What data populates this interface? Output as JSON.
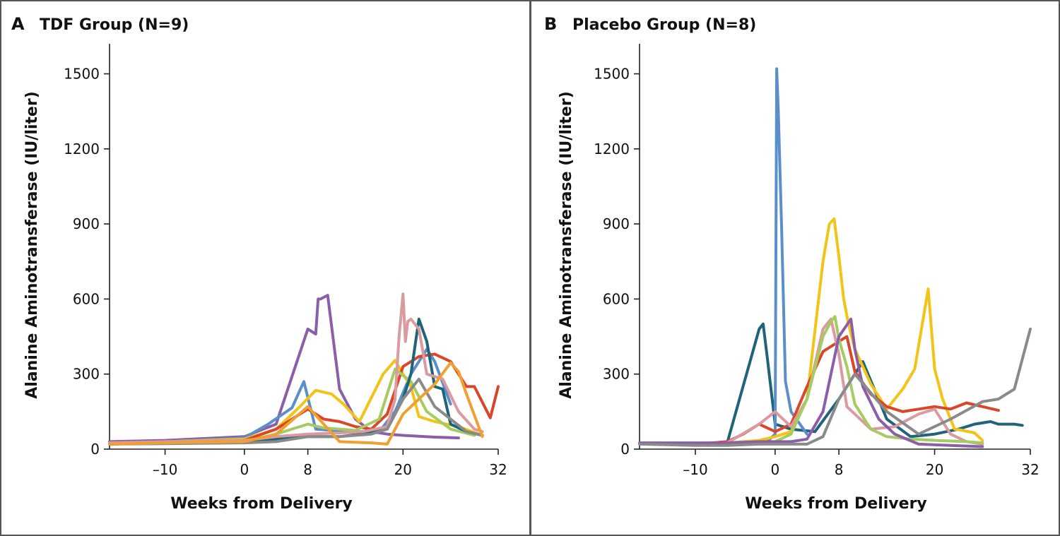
{
  "chart_data": [
    {
      "type": "line",
      "panel_letter": "A",
      "title": "TDF Group (N=9)",
      "xlabel": "Weeks from Delivery",
      "ylabel": "Alanine Aminotransferase (IU/liter)",
      "xlim": [
        -17,
        32
      ],
      "ylim": [
        0,
        1620
      ],
      "xticks": [
        -10,
        0,
        8,
        20,
        32
      ],
      "xtick_labels": [
        "–10",
        "0",
        "8",
        "20",
        "32"
      ],
      "yticks": [
        0,
        300,
        600,
        900,
        1200,
        1500
      ],
      "ytick_labels": [
        "0",
        "300",
        "600",
        "900",
        "1200",
        "1500"
      ],
      "series": [
        {
          "color": "#8b5ea8",
          "x": [
            -17,
            -10,
            0,
            4,
            8,
            9,
            9.3,
            9.6,
            10.5,
            12,
            14,
            16,
            18,
            20,
            24,
            27
          ],
          "y": [
            30,
            35,
            50,
            100,
            480,
            460,
            600,
            600,
            615,
            240,
            120,
            70,
            60,
            55,
            48,
            45
          ]
        },
        {
          "color": "#5b8fc9",
          "x": [
            -17,
            -10,
            0,
            3,
            6,
            7.5,
            9,
            11,
            14,
            17,
            19,
            21,
            23,
            24,
            26
          ],
          "y": [
            25,
            30,
            45,
            100,
            165,
            270,
            80,
            75,
            70,
            70,
            150,
            300,
            400,
            350,
            180
          ]
        },
        {
          "color": "#f2c418",
          "x": [
            -17,
            -10,
            0,
            4,
            7,
            9,
            11,
            12.5,
            14.5,
            17.5,
            19,
            20,
            21,
            22,
            24,
            27,
            30
          ],
          "y": [
            20,
            30,
            40,
            80,
            170,
            235,
            220,
            180,
            110,
            300,
            355,
            300,
            250,
            130,
            110,
            90,
            55
          ]
        },
        {
          "color": "#d9462a",
          "x": [
            -17,
            -10,
            0,
            4,
            8,
            10,
            12,
            14,
            16,
            18,
            20,
            22,
            24,
            26,
            28,
            29,
            31,
            32
          ],
          "y": [
            25,
            30,
            35,
            80,
            160,
            120,
            110,
            90,
            80,
            140,
            330,
            370,
            380,
            350,
            250,
            250,
            125,
            250
          ]
        },
        {
          "color": "#a6cb60",
          "x": [
            -17,
            -10,
            0,
            4,
            8,
            10,
            14,
            17,
            19,
            21,
            23,
            26,
            29
          ],
          "y": [
            20,
            25,
            30,
            60,
            100,
            85,
            75,
            120,
            320,
            270,
            150,
            80,
            55
          ]
        },
        {
          "color": "#1f6479",
          "x": [
            -17,
            -10,
            0,
            4,
            8,
            12,
            16,
            18,
            20,
            21,
            22,
            23,
            24,
            25,
            26,
            28,
            30
          ],
          "y": [
            20,
            25,
            30,
            40,
            50,
            50,
            65,
            80,
            200,
            300,
            520,
            430,
            250,
            240,
            100,
            70,
            55
          ]
        },
        {
          "color": "#d99aa0",
          "x": [
            -17,
            -10,
            0,
            4,
            8,
            12,
            15,
            18,
            19,
            19.5,
            20,
            20.3,
            20.6,
            21,
            21.5,
            22,
            23,
            25,
            27,
            29,
            30
          ],
          "y": [
            25,
            30,
            35,
            50,
            60,
            65,
            70,
            90,
            200,
            450,
            620,
            430,
            510,
            520,
            500,
            480,
            300,
            280,
            150,
            80,
            70
          ]
        },
        {
          "color": "#8a8a8a",
          "x": [
            -17,
            -10,
            0,
            4,
            8,
            12,
            16,
            18,
            20,
            22,
            24,
            26,
            28,
            30
          ],
          "y": [
            20,
            22,
            25,
            30,
            50,
            50,
            60,
            80,
            200,
            280,
            170,
            120,
            70,
            55
          ]
        },
        {
          "color": "#f0a030",
          "x": [
            -17,
            -10,
            0,
            4,
            8,
            12,
            16,
            18,
            20,
            22,
            24,
            26,
            27,
            28,
            30
          ],
          "y": [
            20,
            25,
            30,
            60,
            170,
            30,
            25,
            20,
            140,
            200,
            260,
            345,
            310,
            220,
            50
          ]
        }
      ]
    },
    {
      "type": "line",
      "panel_letter": "B",
      "title": "Placebo Group (N=8)",
      "xlabel": "Weeks from Delivery",
      "ylabel": "Alanine Aminotransferase (IU/liter)",
      "xlim": [
        -17,
        32
      ],
      "ylim": [
        0,
        1620
      ],
      "xticks": [
        -10,
        0,
        8,
        20,
        32
      ],
      "xtick_labels": [
        "–10",
        "0",
        "8",
        "20",
        "32"
      ],
      "yticks": [
        0,
        300,
        600,
        900,
        1200,
        1500
      ],
      "ytick_labels": [
        "0",
        "300",
        "600",
        "900",
        "1200",
        "1500"
      ],
      "series": [
        {
          "color": "#1f6479",
          "x": [
            -17,
            -10,
            -6,
            -2,
            -1.5,
            -1,
            0,
            2,
            5,
            8,
            11,
            14,
            17,
            20,
            23,
            25,
            27,
            28,
            30,
            31
          ],
          "y": [
            20,
            20,
            25,
            480,
            500,
            370,
            100,
            80,
            70,
            200,
            350,
            120,
            50,
            60,
            80,
            100,
            110,
            100,
            100,
            95
          ]
        },
        {
          "color": "#5b8fc9",
          "x": [
            -17,
            -10,
            -6,
            -3,
            -1,
            0,
            0.2,
            0.4,
            0.8,
            1.3,
            2,
            4
          ],
          "y": [
            20,
            20,
            20,
            20,
            30,
            60,
            1520,
            1350,
            900,
            270,
            150,
            60
          ]
        },
        {
          "color": "#f2c418",
          "x": [
            -17,
            -10,
            -6,
            -2,
            0,
            2,
            4,
            6,
            6.8,
            7.4,
            8,
            8.6,
            9.2,
            10,
            12,
            14,
            16,
            17.5,
            19.2,
            20,
            21,
            22.5,
            23.5,
            25,
            26
          ],
          "y": [
            20,
            20,
            25,
            35,
            50,
            70,
            200,
            750,
            900,
            920,
            770,
            600,
            500,
            400,
            260,
            160,
            240,
            320,
            640,
            320,
            200,
            80,
            75,
            65,
            35
          ]
        },
        {
          "color": "#d9462a",
          "x": [
            -17,
            -10,
            -6,
            -4,
            -2,
            0,
            2,
            4,
            6,
            8,
            9,
            10,
            12,
            14,
            16,
            18,
            20,
            22,
            24,
            26,
            28
          ],
          "y": [
            20,
            20,
            30,
            60,
            100,
            70,
            100,
            250,
            390,
            430,
            450,
            310,
            220,
            170,
            150,
            160,
            170,
            160,
            185,
            170,
            155
          ]
        },
        {
          "color": "#d99aa0",
          "x": [
            -17,
            -10,
            -6,
            -2,
            0,
            2,
            4,
            6,
            7,
            8,
            9,
            12,
            15,
            18,
            20,
            22,
            24,
            26
          ],
          "y": [
            20,
            20,
            25,
            100,
            150,
            90,
            200,
            480,
            520,
            380,
            170,
            80,
            90,
            140,
            160,
            60,
            30,
            20
          ]
        },
        {
          "color": "#a6cb60",
          "x": [
            -17,
            -10,
            -6,
            -2,
            0,
            2,
            4,
            6,
            7,
            7.5,
            8,
            9,
            10,
            12,
            14,
            17,
            20,
            24,
            26
          ],
          "y": [
            20,
            20,
            20,
            20,
            30,
            60,
            200,
            450,
            510,
            530,
            440,
            330,
            180,
            80,
            50,
            40,
            35,
            30,
            25
          ]
        },
        {
          "color": "#8b5ea8",
          "x": [
            -17,
            -10,
            -6,
            -2,
            0,
            2,
            4,
            6,
            8,
            9.5,
            10,
            11,
            13,
            15,
            18,
            22,
            26
          ],
          "y": [
            25,
            25,
            25,
            30,
            30,
            30,
            40,
            150,
            450,
            520,
            400,
            250,
            120,
            60,
            20,
            15,
            10
          ]
        },
        {
          "color": "#8a8a8a",
          "x": [
            -17,
            -10,
            -6,
            -2,
            0,
            2,
            4,
            6,
            8,
            10,
            14,
            18,
            22,
            26,
            28,
            30,
            32
          ],
          "y": [
            20,
            15,
            15,
            20,
            20,
            20,
            20,
            50,
            200,
            300,
            150,
            60,
            120,
            190,
            200,
            240,
            480
          ]
        }
      ]
    }
  ]
}
